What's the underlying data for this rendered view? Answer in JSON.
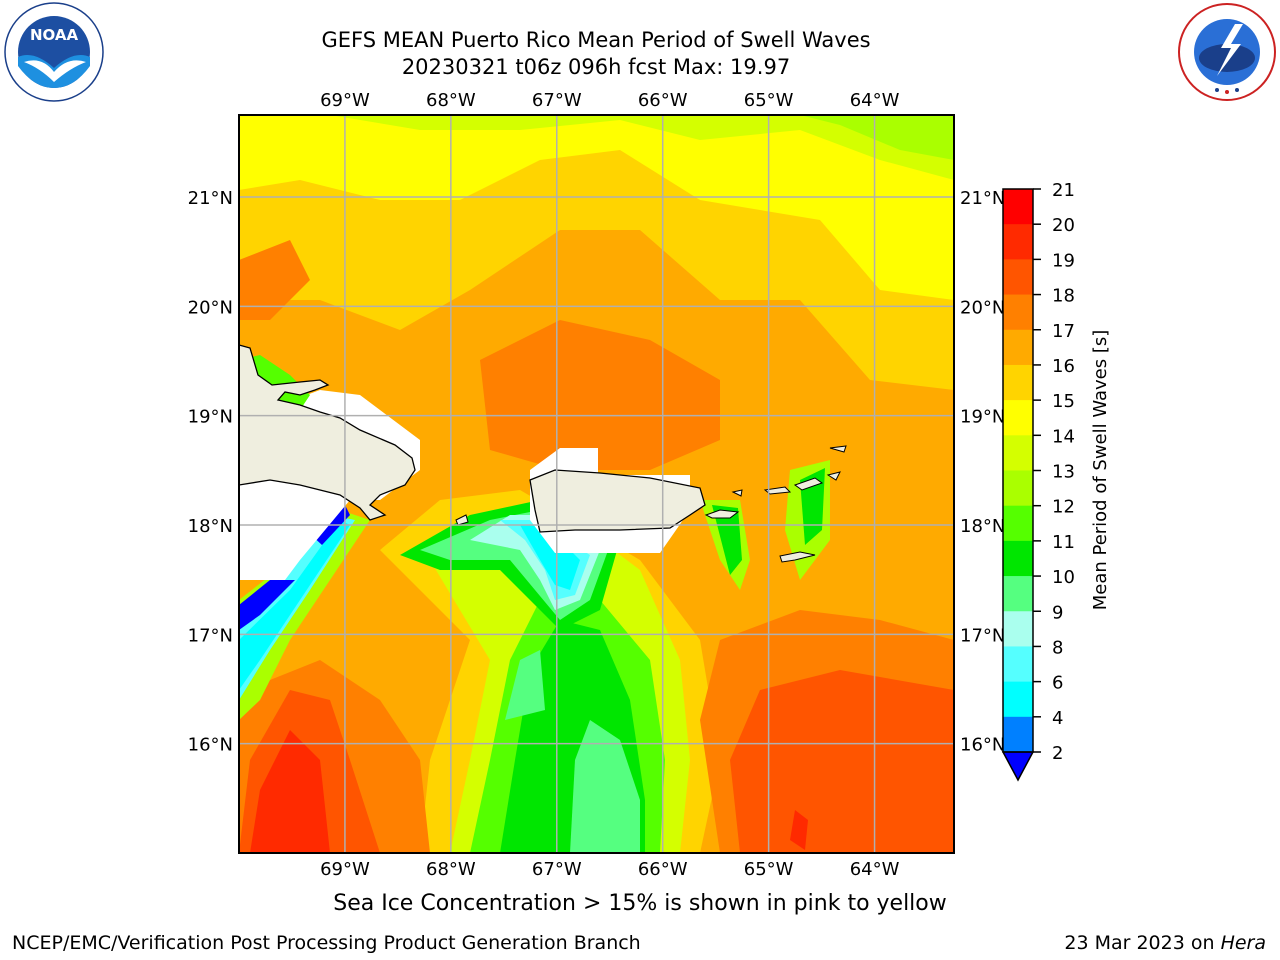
{
  "header": {
    "title_line1": "GEFS MEAN Puerto Rico Mean Period of Swell Waves",
    "title_line2": "20230321 t06z 096h fcst   Max: 19.97"
  },
  "logos": {
    "left": "NOAA",
    "left_ring_text": "NATIONAL OCEANIC AND ATMOSPHERIC ADMINISTRATION · U.S. DEPARTMENT OF COMMERCE",
    "right_ring_text": "NATIONAL WEATHER SERVICE"
  },
  "map": {
    "longitude_labels": [
      "69°W",
      "68°W",
      "67°W",
      "66°W",
      "65°W",
      "64°W"
    ],
    "latitude_labels": [
      "21°N",
      "20°N",
      "19°N",
      "18°N",
      "17°N",
      "16°N"
    ],
    "lon_range": [
      -70.0,
      -63.25
    ],
    "lat_range": [
      15.0,
      21.75
    ],
    "gridlines": true,
    "land_color": "#efeedf",
    "field": "Mean period of swell waves (s)"
  },
  "colorbar": {
    "label": "Mean Period of Swell Waves [s]",
    "ticks": [
      "21",
      "20",
      "19",
      "18",
      "17",
      "16",
      "15",
      "14",
      "13",
      "12",
      "11",
      "10",
      "9",
      "8",
      "6",
      "4",
      "2"
    ],
    "colors": [
      "#ff0000",
      "#ff2a00",
      "#ff5500",
      "#ff8000",
      "#ffaa00",
      "#ffd400",
      "#ffff00",
      "#d4ff00",
      "#aaff00",
      "#55ff00",
      "#00e600",
      "#55ff80",
      "#aaffee",
      "#55ffff",
      "#00ffff",
      "#0080ff",
      "#0000ff"
    ],
    "extend_color": "#0000ff"
  },
  "footer": {
    "note": "Sea Ice Concentration > 15% is shown in pink to yellow",
    "left": "NCEP/EMC/Verification Post Processing Product Generation Branch",
    "right_prefix": "23 Mar 2023 on ",
    "right_host": "Hera"
  }
}
